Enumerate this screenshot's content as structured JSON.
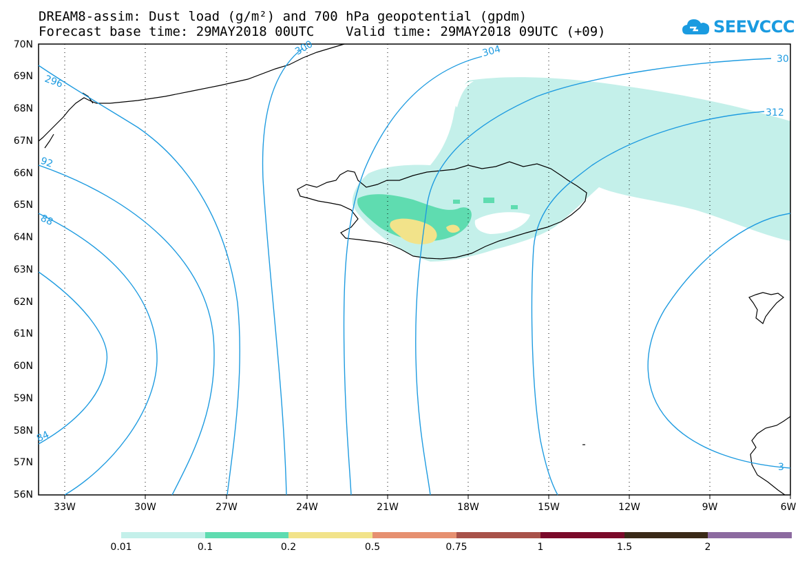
{
  "title": {
    "line1": "DREAM8-assim: Dust load (g/m²) and 700 hPa geopotential (gpdm)",
    "line2": "Forecast base time: 29MAY2018 00UTC    Valid time: 29MAY2018 09UTC (+09)"
  },
  "logo": {
    "text": "SEEVCCC",
    "icon": "cloud-logo-icon"
  },
  "map": {
    "lat_labels": [
      "70N",
      "69N",
      "68N",
      "67N",
      "66N",
      "65N",
      "64N",
      "63N",
      "62N",
      "61N",
      "60N",
      "59N",
      "58N",
      "57N",
      "56N"
    ],
    "lon_labels": [
      "33W",
      "30W",
      "27W",
      "24W",
      "21W",
      "18W",
      "15W",
      "12W",
      "9W",
      "6W"
    ],
    "contour_labels": [
      "296",
      "300",
      "304",
      "30",
      "312",
      "92",
      "88",
      "84",
      "3"
    ],
    "contour_color": "#1e9be0"
  },
  "colorbar": {
    "labels": [
      "0.01",
      "0.1",
      "0.2",
      "0.5",
      "0.75",
      "1",
      "1.5",
      "2"
    ],
    "colors": [
      "#c4f0ea",
      "#5fdcb0",
      "#f2e38a",
      "#e69070",
      "#a8524a",
      "#7a0a2a",
      "#3a2a18",
      "#8c6aa0"
    ]
  }
}
